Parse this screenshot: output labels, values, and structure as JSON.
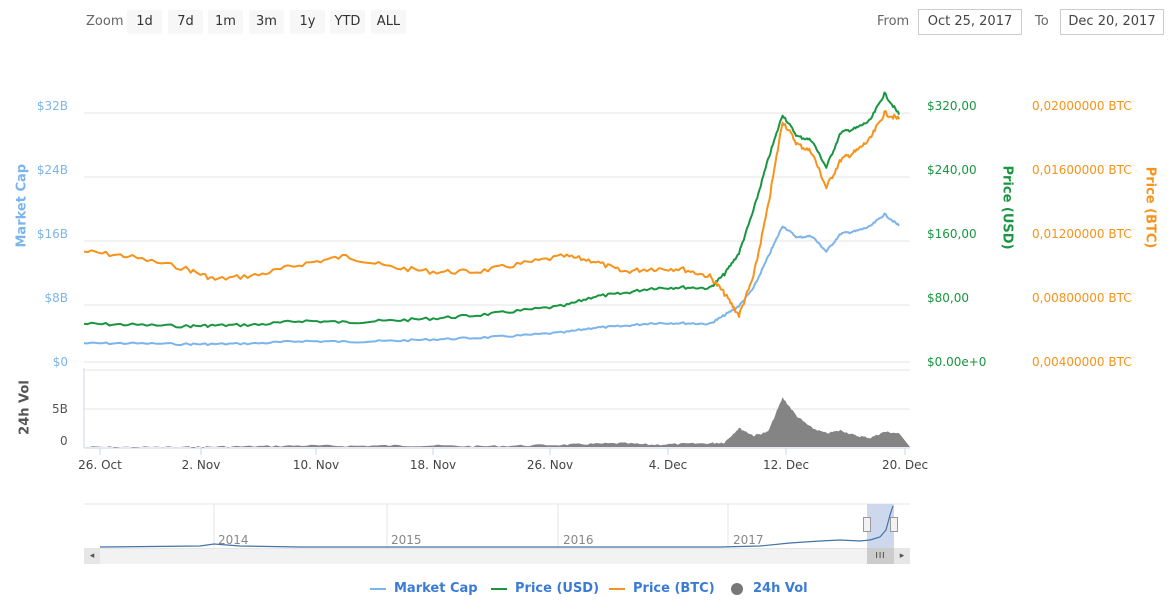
{
  "toolbar": {
    "zoom_label": "Zoom",
    "buttons": [
      {
        "label": "1d"
      },
      {
        "label": "7d"
      },
      {
        "label": "1m"
      },
      {
        "label": "3m"
      },
      {
        "label": "1y"
      },
      {
        "label": "YTD"
      },
      {
        "label": "ALL"
      }
    ],
    "from_label": "From",
    "from_value": "Oct 25, 2017",
    "to_label": "To",
    "to_value": "Dec 20, 2017"
  },
  "axes": {
    "market_cap": {
      "title": "Market Cap",
      "ticks": [
        "$32B",
        "$24B",
        "$16B",
        "$8B",
        "$0"
      ]
    },
    "price_usd": {
      "title": "Price (USD)",
      "ticks": [
        "$320,00",
        "$240,00",
        "$160,00",
        "$80,00",
        "$0.00e+0"
      ]
    },
    "price_btc": {
      "title": "Price (BTC)",
      "ticks": [
        "0,02000000 BTC",
        "0,01600000 BTC",
        "0,01200000 BTC",
        "0,00800000 BTC",
        "0,00400000 BTC"
      ]
    },
    "volume": {
      "title": "24h Vol",
      "ticks": [
        "5B",
        "0"
      ]
    },
    "x_ticks": [
      "26. Oct",
      "2. Nov",
      "10. Nov",
      "18. Nov",
      "26. Nov",
      "4. Dec",
      "12. Dec",
      "20. Dec"
    ]
  },
  "navigator": {
    "years": [
      "2014",
      "2015",
      "2016",
      "2017"
    ],
    "scroll_left_icon": "◂",
    "scroll_right_icon": "▸",
    "scroll_grip": "III"
  },
  "legend": {
    "items": [
      {
        "label": "Market Cap",
        "color": "#7cb5ec",
        "symbol": "line"
      },
      {
        "label": "Price (USD)",
        "color": "#1a9641",
        "symbol": "line"
      },
      {
        "label": "Price (BTC)",
        "color": "#f7931a",
        "symbol": "line"
      },
      {
        "label": "24h Vol",
        "color": "#777777",
        "symbol": "circle"
      }
    ]
  },
  "colors": {
    "market_cap": "#7cb5ec",
    "price_usd": "#1a9641",
    "price_btc": "#f7931a",
    "volume": "#777777",
    "grid": "#e6e6e6",
    "navigator_line": "#4572a7",
    "navigator_mask": "#c8d4ea"
  },
  "chart_data": {
    "type": "line",
    "title": "",
    "x": [
      "2017-10-25",
      "2017-10-28",
      "2017-11-01",
      "2017-11-03",
      "2017-11-06",
      "2017-11-09",
      "2017-11-12",
      "2017-11-15",
      "2017-11-18",
      "2017-11-21",
      "2017-11-24",
      "2017-11-27",
      "2017-11-29",
      "2017-12-01",
      "2017-12-03",
      "2017-12-05",
      "2017-12-07",
      "2017-12-08",
      "2017-12-09",
      "2017-12-10",
      "2017-12-11",
      "2017-12-12",
      "2017-12-13",
      "2017-12-14",
      "2017-12-15",
      "2017-12-16",
      "2017-12-17",
      "2017-12-18",
      "2017-12-19",
      "2017-12-20"
    ],
    "series": [
      {
        "name": "Market Cap",
        "axis": "left",
        "unit": "USD billions",
        "values": [
          2.4,
          2.4,
          2.3,
          2.3,
          2.4,
          2.7,
          2.6,
          2.7,
          2.9,
          3.1,
          3.4,
          3.8,
          4.4,
          4.6,
          5.0,
          5.0,
          4.9,
          6.0,
          7.2,
          9.5,
          13.5,
          17.5,
          16.0,
          16.2,
          14.2,
          16.5,
          16.8,
          17.4,
          19.0,
          17.5
        ]
      },
      {
        "name": "Price (USD)",
        "axis": "right-usd",
        "unit": "USD",
        "values": [
          49,
          48,
          46,
          47,
          48,
          53,
          51,
          53,
          56,
          60,
          66,
          72,
          84,
          88,
          95,
          96,
          95,
          113,
          140,
          195,
          260,
          318,
          290,
          285,
          250,
          295,
          300,
          310,
          345,
          318
        ]
      },
      {
        "name": "Price (BTC)",
        "axis": "right-btc",
        "unit": "BTC",
        "values": [
          0.0111,
          0.0108,
          0.01,
          0.0093,
          0.0096,
          0.0103,
          0.0108,
          0.0101,
          0.0098,
          0.0098,
          0.0103,
          0.0108,
          0.0105,
          0.0098,
          0.01,
          0.01,
          0.0095,
          0.0084,
          0.007,
          0.0095,
          0.014,
          0.0195,
          0.018,
          0.0175,
          0.0152,
          0.017,
          0.0175,
          0.0183,
          0.02,
          0.0196
        ]
      },
      {
        "name": "24h Vol",
        "axis": "volume",
        "unit": "USD billions",
        "type": "area",
        "values": [
          0.0,
          0.0,
          0.0,
          0.05,
          0.1,
          0.2,
          0.15,
          0.2,
          0.2,
          0.1,
          0.2,
          0.3,
          0.4,
          0.5,
          0.3,
          0.4,
          0.5,
          0.6,
          2.5,
          1.5,
          2.0,
          6.5,
          4.0,
          2.5,
          1.8,
          2.2,
          1.5,
          1.2,
          2.0,
          1.8
        ]
      }
    ],
    "xlabel": "",
    "ylabel_left": "Market Cap",
    "ylabel_right": [
      "Price (USD)",
      "Price (BTC)"
    ],
    "ylim_left": [
      0,
      32
    ],
    "ylim_usd": [
      0,
      320
    ],
    "ylim_btc": [
      0.004,
      0.02
    ],
    "ylim_volume": [
      0,
      10
    ],
    "grid": true,
    "legend_position": "bottom"
  }
}
